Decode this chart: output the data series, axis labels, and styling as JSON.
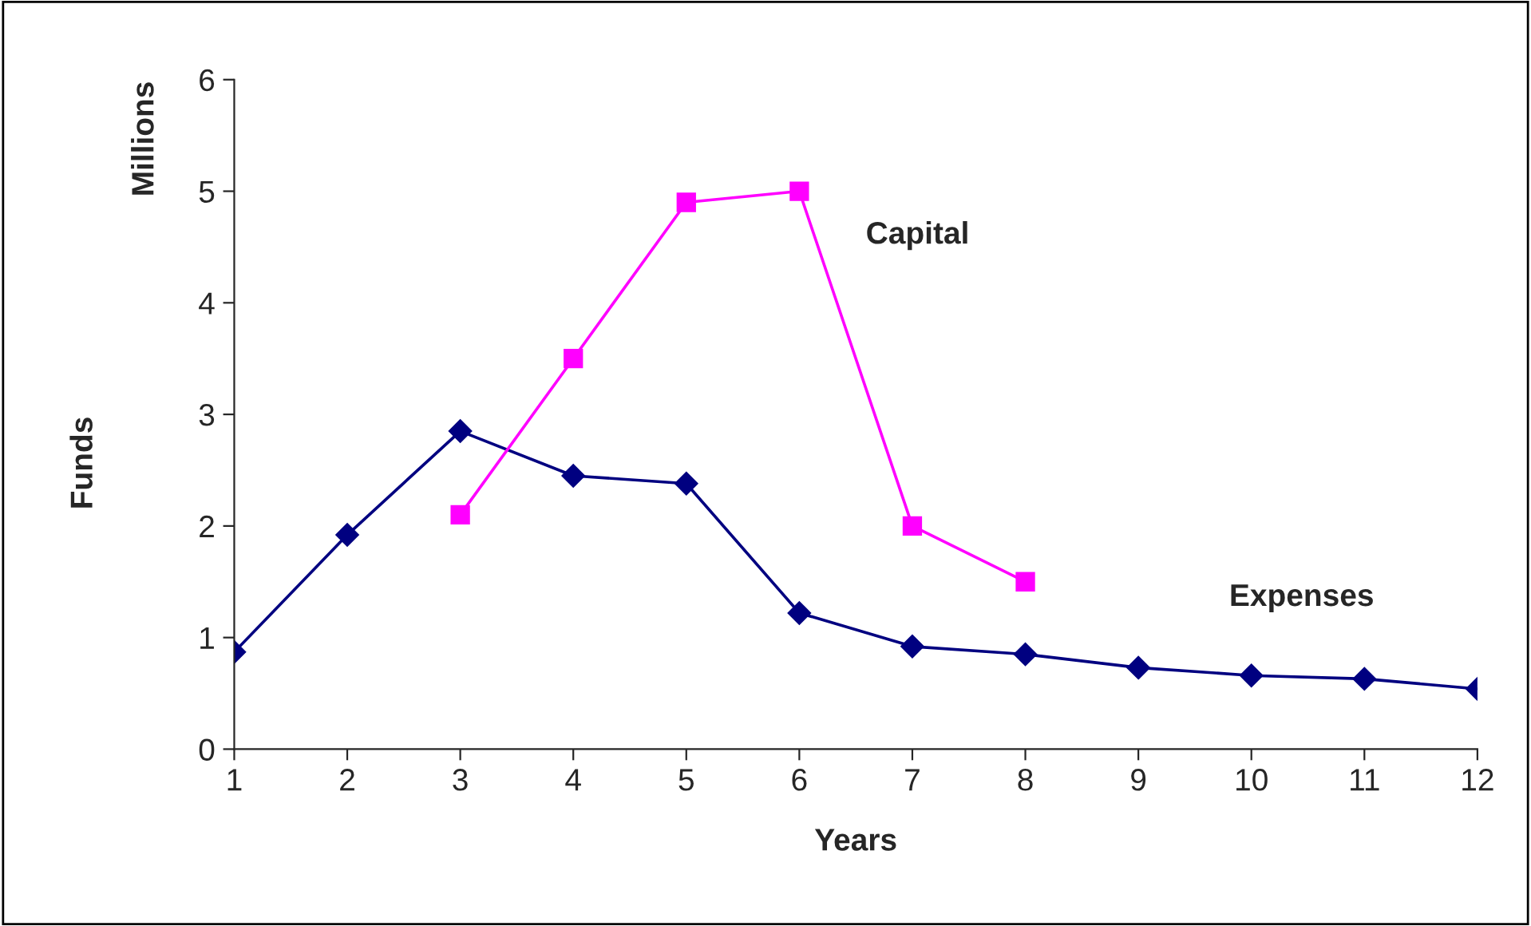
{
  "chart_data": {
    "type": "line",
    "xlabel": "Years",
    "ylabel": "Funds",
    "annotations": [
      "Millions"
    ],
    "xlim": [
      1,
      12
    ],
    "xticks": [
      1,
      2,
      3,
      4,
      5,
      6,
      7,
      8,
      9,
      10,
      11,
      12
    ],
    "ylim": [
      0,
      6
    ],
    "yticks": [
      0,
      1,
      2,
      3,
      4,
      5,
      6
    ],
    "grid": false,
    "legend": false,
    "series": [
      {
        "name": "Expenses",
        "color": "#000080",
        "marker": "diamond",
        "x": [
          1,
          2,
          3,
          4,
          5,
          6,
          7,
          8,
          9,
          10,
          11,
          12
        ],
        "values": [
          0.87,
          1.92,
          2.85,
          2.45,
          2.38,
          1.22,
          0.92,
          0.85,
          0.73,
          0.66,
          0.63,
          0.54
        ]
      },
      {
        "name": "Capital",
        "color": "#ff00ff",
        "marker": "square",
        "x": [
          3,
          4,
          5,
          6,
          7,
          8
        ],
        "values": [
          2.1,
          3.5,
          4.9,
          5.0,
          2.0,
          1.5
        ]
      }
    ]
  }
}
